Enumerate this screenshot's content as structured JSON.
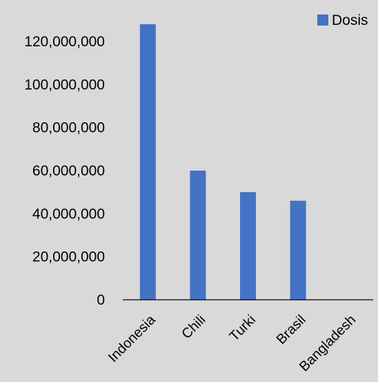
{
  "chart_data": {
    "type": "bar",
    "categories": [
      "Indonesia",
      "Chili",
      "Turki",
      "Brasil",
      "Bangladesh"
    ],
    "series": [
      {
        "name": "Dosis",
        "values": [
          128000000,
          60000000,
          50000000,
          46000000,
          0
        ],
        "color": "#4472c4"
      }
    ],
    "ylim": [
      0,
      140000000
    ],
    "yticks": [
      {
        "value": 0,
        "label": "0"
      },
      {
        "value": 20000000,
        "label": "20,000,000"
      },
      {
        "value": 40000000,
        "label": "40,000,000"
      },
      {
        "value": 60000000,
        "label": "60,000,000"
      },
      {
        "value": 80000000,
        "label": "80,000,000"
      },
      {
        "value": 100000000,
        "label": "100,000,000"
      },
      {
        "value": 120000000,
        "label": "120,000,000"
      }
    ],
    "grid": false,
    "legend_position": "top-right",
    "background": "#d9d9d9",
    "axis_color": "#000000"
  }
}
